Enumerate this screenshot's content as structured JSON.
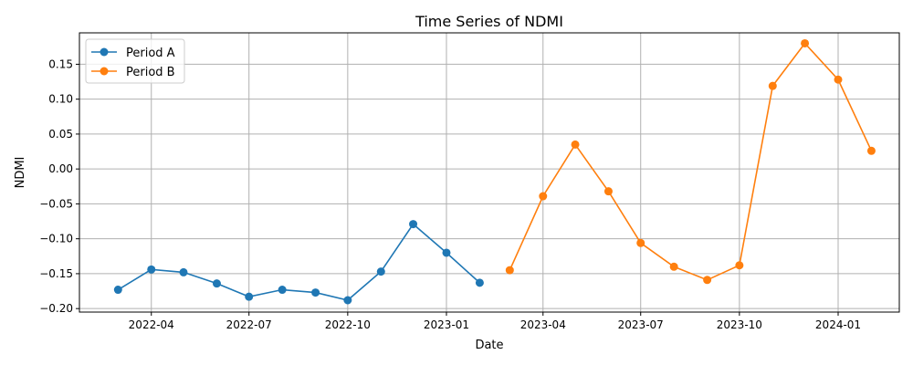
{
  "chart_data": {
    "type": "line",
    "title": "Time Series of NDMI",
    "xlabel": "Date",
    "ylabel": "NDMI",
    "x_ticks": [
      "2022-04",
      "2022-07",
      "2022-10",
      "2023-01",
      "2023-04",
      "2023-07",
      "2023-10",
      "2024-01"
    ],
    "y_ticks": [
      "0.15",
      "0.10",
      "0.05",
      "0.00",
      "−0.05",
      "−0.10",
      "−0.15",
      "−0.20"
    ],
    "ylim": [
      -0.205,
      0.195
    ],
    "xlim": [
      "2022-01-24",
      "2024-02-27"
    ],
    "grid": true,
    "legend": "top-left",
    "series": [
      {
        "name": "Period A",
        "color": "#1f77b4",
        "x": [
          "2022-03-01",
          "2022-04-01",
          "2022-05-01",
          "2022-06-01",
          "2022-07-01",
          "2022-08-01",
          "2022-09-01",
          "2022-10-01",
          "2022-11-01",
          "2022-12-01",
          "2023-01-01",
          "2023-02-01"
        ],
        "values": [
          -0.173,
          -0.144,
          -0.148,
          -0.164,
          -0.183,
          -0.173,
          -0.177,
          -0.188,
          -0.147,
          -0.079,
          -0.12,
          -0.163
        ]
      },
      {
        "name": "Period B",
        "color": "#ff7f0e",
        "x": [
          "2023-03-01",
          "2023-04-01",
          "2023-05-01",
          "2023-06-01",
          "2023-07-01",
          "2023-08-01",
          "2023-09-01",
          "2023-10-01",
          "2023-11-01",
          "2023-12-01",
          "2024-01-01",
          "2024-02-01"
        ],
        "values": [
          -0.145,
          -0.039,
          0.035,
          -0.032,
          -0.106,
          -0.14,
          -0.159,
          -0.138,
          0.119,
          0.18,
          0.128,
          0.026
        ]
      }
    ]
  }
}
